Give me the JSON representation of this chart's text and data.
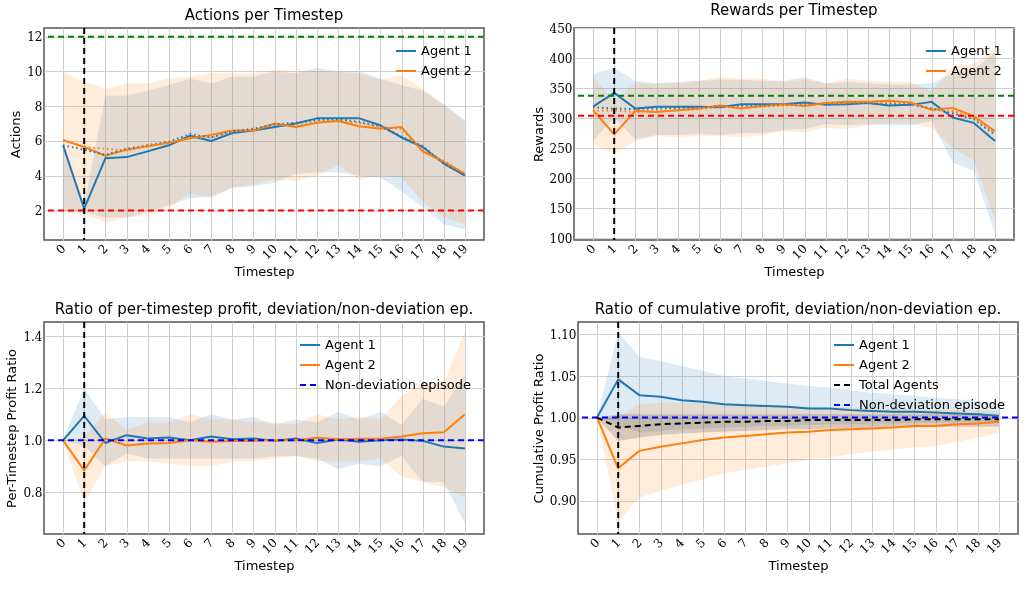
{
  "chart_data": [
    {
      "type": "line",
      "title": "Actions per Timestep",
      "xlabel": "Timestep",
      "ylabel": "Actions",
      "x": [
        0,
        1,
        2,
        3,
        4,
        5,
        6,
        7,
        8,
        9,
        10,
        11,
        12,
        13,
        14,
        15,
        16,
        17,
        18,
        19
      ],
      "xlim": [
        -0.9,
        19.9
      ],
      "xticks": [
        0,
        1,
        2,
        3,
        4,
        5,
        6,
        7,
        8,
        9,
        10,
        11,
        12,
        13,
        14,
        15,
        16,
        17,
        18,
        19
      ],
      "ylim": [
        0.3,
        12.5
      ],
      "yticks": [
        2,
        4,
        6,
        8,
        10,
        12
      ],
      "grid": true,
      "legend": "top right",
      "series": [
        {
          "name": "Agent 1",
          "color": "#1f77b4",
          "values": [
            5.75,
            2.1,
            5.0,
            5.07,
            5.4,
            5.75,
            6.3,
            6.0,
            6.45,
            6.6,
            6.8,
            7.0,
            7.3,
            7.3,
            7.3,
            6.9,
            6.2,
            5.65,
            4.7,
            4.0
          ],
          "upper": [
            5.9,
            2.3,
            8.6,
            8.6,
            8.9,
            9.2,
            9.6,
            9.3,
            9.7,
            9.7,
            10.0,
            9.9,
            10.2,
            10.0,
            10.0,
            9.6,
            9.2,
            8.9,
            8.1,
            7.2
          ],
          "lower": [
            1.9,
            1.9,
            1.6,
            1.6,
            1.9,
            2.3,
            2.7,
            2.8,
            3.3,
            3.4,
            3.6,
            4.1,
            4.2,
            4.2,
            4.0,
            3.9,
            3.1,
            2.2,
            1.2,
            0.9
          ]
        },
        {
          "name": "Agent 2",
          "color": "#ff7f0e",
          "values": [
            6.05,
            5.65,
            5.15,
            5.5,
            5.7,
            5.9,
            6.15,
            6.35,
            6.6,
            6.6,
            7.0,
            6.8,
            7.05,
            7.15,
            6.85,
            6.7,
            6.8,
            5.4,
            4.8,
            4.1
          ],
          "upper": [
            10.0,
            9.4,
            9.0,
            9.3,
            9.3,
            9.6,
            9.7,
            9.9,
            9.9,
            9.9,
            10.1,
            10.0,
            10.0,
            9.95,
            9.9,
            9.5,
            9.8,
            9.0,
            8.1,
            7.1
          ],
          "lower": [
            1.9,
            1.8,
            1.3,
            1.6,
            1.7,
            2.1,
            3.0,
            2.7,
            3.3,
            3.5,
            3.8,
            3.7,
            4.0,
            4.6,
            3.8,
            4.0,
            3.9,
            2.5,
            1.6,
            1.2
          ]
        },
        {
          "color": "#1f77b4",
          "line_style": "dotted",
          "values": [
            5.75,
            5.5,
            5.2,
            5.55,
            5.75,
            5.95,
            6.4,
            6.2,
            6.55,
            6.7,
            6.95,
            7.05,
            7.2,
            7.25,
            7.1,
            6.85,
            6.25,
            5.7,
            4.7,
            4.05
          ]
        },
        {
          "color": "#ff7f0e",
          "line_style": "dotted",
          "values": [
            6.05,
            5.65,
            5.55,
            5.45,
            5.75,
            5.9,
            6.2,
            6.2,
            6.55,
            6.65,
            6.95,
            6.85,
            7.1,
            7.15,
            7.05,
            6.8,
            6.7,
            5.5,
            4.85,
            4.1
          ]
        }
      ],
      "ref_lines": [
        {
          "axis": "y",
          "value": 12,
          "color": "#008000",
          "line_style": "dashed"
        },
        {
          "axis": "y",
          "value": 2,
          "color": "#ff0000",
          "line_style": "dashed"
        },
        {
          "axis": "x",
          "value": 1,
          "color": "#000000",
          "line_style": "dashed"
        }
      ]
    },
    {
      "type": "line",
      "title": "Rewards per Timestep",
      "xlabel": "Timestep",
      "ylabel": "Rewards",
      "x": [
        0,
        1,
        2,
        3,
        4,
        5,
        6,
        7,
        8,
        9,
        10,
        11,
        12,
        13,
        14,
        15,
        16,
        17,
        18,
        19
      ],
      "xlim": [
        -0.9,
        19.9
      ],
      "xticks": [
        0,
        1,
        2,
        3,
        4,
        5,
        6,
        7,
        8,
        9,
        10,
        11,
        12,
        13,
        14,
        15,
        16,
        17,
        18,
        19
      ],
      "ylim": [
        97,
        450
      ],
      "yticks": [
        100,
        150,
        200,
        250,
        300,
        350,
        400,
        450
      ],
      "grid": true,
      "legend": "top right",
      "series": [
        {
          "name": "Agent 1",
          "color": "#1f77b4",
          "values": [
            319,
            342,
            316,
            319,
            319,
            319,
            318,
            323,
            323,
            323,
            326,
            322,
            323,
            325,
            321,
            322,
            327,
            301,
            292,
            262
          ],
          "upper": [
            374,
            384,
            362,
            358,
            360,
            362,
            364,
            364,
            362,
            362,
            368,
            358,
            360,
            358,
            356,
            356,
            358,
            375,
            380,
            410
          ],
          "lower": [
            262,
            300,
            265,
            272,
            272,
            274,
            272,
            275,
            275,
            280,
            282,
            290,
            288,
            290,
            288,
            288,
            295,
            226,
            212,
            108
          ]
        },
        {
          "name": "Agent 2",
          "color": "#ff7f0e",
          "values": [
            313,
            273,
            312,
            310,
            313,
            316,
            321,
            316,
            320,
            323,
            320,
            325,
            327,
            327,
            329,
            326,
            314,
            317,
            303,
            278
          ],
          "upper": [
            368,
            330,
            358,
            358,
            358,
            362,
            368,
            366,
            366,
            360,
            364,
            358,
            365,
            362,
            360,
            360,
            345,
            385,
            390,
            415
          ],
          "lower": [
            256,
            240,
            262,
            270,
            268,
            270,
            270,
            268,
            272,
            278,
            276,
            284,
            282,
            288,
            292,
            290,
            284,
            250,
            230,
            130
          ]
        },
        {
          "color": "#1f77b4",
          "line_style": "dotted",
          "values": [
            318,
            316,
            315,
            316,
            317,
            318,
            319,
            320,
            321,
            322,
            323,
            324,
            325,
            325,
            324,
            323,
            316,
            308,
            298,
            272
          ]
        },
        {
          "color": "#ff7f0e",
          "line_style": "dotted",
          "values": [
            312,
            313,
            310,
            312,
            313,
            315,
            318,
            318,
            319,
            321,
            322,
            324,
            325,
            326,
            326,
            325,
            314,
            312,
            300,
            275
          ]
        }
      ],
      "ref_lines": [
        {
          "axis": "y",
          "value": 337,
          "color": "#008000",
          "line_style": "dashed"
        },
        {
          "axis": "y",
          "value": 304,
          "color": "#ff0000",
          "line_style": "dashed"
        },
        {
          "axis": "x",
          "value": 1,
          "color": "#000000",
          "line_style": "dashed"
        }
      ]
    },
    {
      "type": "line",
      "title": "Ratio of per-timestep profit, deviation/non-deviation ep.",
      "xlabel": "Timestep",
      "ylabel": "Per-Timestep Profit Ratio",
      "x": [
        0,
        1,
        2,
        3,
        4,
        5,
        6,
        7,
        8,
        9,
        10,
        11,
        12,
        13,
        14,
        15,
        16,
        17,
        18,
        19
      ],
      "xlim": [
        -0.9,
        19.9
      ],
      "xticks": [
        0,
        1,
        2,
        3,
        4,
        5,
        6,
        7,
        8,
        9,
        10,
        11,
        12,
        13,
        14,
        15,
        16,
        17,
        18,
        19
      ],
      "ylim": [
        0.64,
        1.455
      ],
      "yticks": [
        0.8,
        {
          "value": 1,
          "label": "1.0"
        },
        1.2,
        1.4
      ],
      "grid": true,
      "legend": "top right",
      "series": [
        {
          "name": "Agent 1",
          "color": "#1f77b4",
          "values": [
            1.0,
            1.094,
            0.99,
            1.02,
            1.007,
            1.011,
            1.0,
            1.015,
            1.004,
            1.007,
            0.998,
            1.007,
            0.99,
            1.003,
            0.995,
            1.0,
            1.003,
            0.998,
            0.976,
            0.969
          ],
          "upper": [
            1.0,
            1.2,
            1.08,
            1.09,
            1.09,
            1.09,
            1.07,
            1.1,
            1.08,
            1.09,
            1.06,
            1.08,
            1.07,
            1.11,
            1.08,
            1.11,
            1.06,
            1.16,
            1.13,
            1.25
          ],
          "lower": [
            1.0,
            0.98,
            0.9,
            0.95,
            0.93,
            0.93,
            0.93,
            0.93,
            0.93,
            0.93,
            0.94,
            0.94,
            0.93,
            0.89,
            0.91,
            0.9,
            0.94,
            0.84,
            0.84,
            0.68
          ]
        },
        {
          "name": "Agent 2",
          "color": "#ff7f0e",
          "values": [
            1.0,
            0.884,
            1.007,
            0.98,
            0.988,
            0.99,
            1.0,
            0.995,
            0.998,
            0.998,
            1.0,
            1.0,
            1.01,
            1.004,
            1.006,
            1.006,
            1.015,
            1.027,
            1.031,
            1.1
          ],
          "upper": [
            1.0,
            1.01,
            1.11,
            1.04,
            1.07,
            1.07,
            1.1,
            1.08,
            1.08,
            1.07,
            1.07,
            1.06,
            1.1,
            1.08,
            1.09,
            1.08,
            1.17,
            1.22,
            1.22,
            1.42
          ],
          "lower": [
            1.0,
            0.76,
            0.9,
            0.92,
            0.92,
            0.91,
            0.9,
            0.9,
            0.92,
            0.92,
            0.93,
            0.94,
            0.92,
            0.92,
            0.92,
            0.93,
            0.86,
            0.84,
            0.82,
            0.78
          ]
        }
      ],
      "ref_lines": [
        {
          "axis": "y",
          "value": 1.0,
          "color": "#0000ff",
          "line_style": "dashed",
          "label": "Non-deviation episode"
        },
        {
          "axis": "x",
          "value": 1,
          "color": "#000000",
          "line_style": "dashed"
        }
      ]
    },
    {
      "type": "line",
      "title": "Ratio of cumulative profit, deviation/non-deviation ep.",
      "xlabel": "Timestep",
      "ylabel": "Cumulative Profit Ratio",
      "x": [
        0,
        1,
        2,
        3,
        4,
        5,
        6,
        7,
        8,
        9,
        10,
        11,
        12,
        13,
        14,
        15,
        16,
        17,
        18,
        19
      ],
      "xlim": [
        -0.9,
        19.9
      ],
      "xticks": [
        0,
        1,
        2,
        3,
        4,
        5,
        6,
        7,
        8,
        9,
        10,
        11,
        12,
        13,
        14,
        15,
        16,
        17,
        18,
        19
      ],
      "ylim": [
        0.86,
        1.115
      ],
      "yticks": [
        {
          "value": 0.9,
          "label": "0.90"
        },
        {
          "value": 0.95,
          "label": "0.95"
        },
        {
          "value": 1.0,
          "label": "1.00"
        },
        {
          "value": 1.05,
          "label": "1.05"
        },
        {
          "value": 1.1,
          "label": "1.10"
        }
      ],
      "grid": true,
      "legend": "top right",
      "series": [
        {
          "name": "Agent 1",
          "color": "#1f77b4",
          "values": [
            1.0,
            1.046,
            1.027,
            1.025,
            1.021,
            1.019,
            1.016,
            1.015,
            1.014,
            1.013,
            1.011,
            1.011,
            1.009,
            1.008,
            1.007,
            1.007,
            1.006,
            1.005,
            1.004,
            1.002
          ],
          "upper": [
            1.0,
            1.103,
            1.073,
            1.068,
            1.062,
            1.056,
            1.05,
            1.047,
            1.044,
            1.041,
            1.038,
            1.036,
            1.033,
            1.03,
            1.028,
            1.026,
            1.024,
            1.022,
            1.02,
            1.017
          ],
          "lower": [
            1.0,
            0.99,
            0.982,
            0.984,
            0.986,
            0.987,
            0.988,
            0.989,
            0.99,
            0.99,
            0.991,
            0.992,
            0.992,
            0.993,
            0.993,
            0.994,
            0.994,
            0.994,
            0.995,
            0.995
          ]
        },
        {
          "name": "Agent 2",
          "color": "#ff7f0e",
          "values": [
            1.0,
            0.939,
            0.96,
            0.965,
            0.969,
            0.973,
            0.976,
            0.978,
            0.98,
            0.982,
            0.983,
            0.985,
            0.986,
            0.987,
            0.988,
            0.99,
            0.99,
            0.992,
            0.993,
            0.995
          ],
          "upper": [
            1.0,
            1.0,
            1.016,
            1.018,
            1.018,
            1.018,
            1.017,
            1.016,
            1.015,
            1.014,
            1.013,
            1.012,
            1.012,
            1.011,
            1.011,
            1.01,
            1.01,
            1.009,
            1.009,
            1.008
          ],
          "lower": [
            1.0,
            0.875,
            0.904,
            0.912,
            0.919,
            0.926,
            0.933,
            0.937,
            0.941,
            0.945,
            0.949,
            0.952,
            0.956,
            0.959,
            0.962,
            0.964,
            0.966,
            0.971,
            0.976,
            0.981
          ]
        },
        {
          "name": "Total Agents",
          "color": "#000000",
          "line_style": "dashed",
          "values": [
            1.0,
            0.988,
            0.99,
            0.992,
            0.993,
            0.994,
            0.995,
            0.995,
            0.996,
            0.996,
            0.997,
            0.997,
            0.997,
            0.997,
            0.997,
            0.998,
            0.998,
            0.998,
            0.998,
            0.998
          ],
          "upper": [
            1.0,
            1.004,
            1.004,
            1.004,
            1.004,
            1.004,
            1.004,
            1.004,
            1.004,
            1.004,
            1.004,
            1.004,
            1.004,
            1.004,
            1.004,
            1.004,
            1.004,
            1.004,
            1.004,
            1.004
          ],
          "lower": [
            1.0,
            0.972,
            0.976,
            0.979,
            0.981,
            0.982,
            0.983,
            0.984,
            0.985,
            0.986,
            0.986,
            0.987,
            0.987,
            0.988,
            0.988,
            0.988,
            0.989,
            0.989,
            0.989,
            0.989
          ]
        }
      ],
      "ref_lines": [
        {
          "axis": "y",
          "value": 1.0,
          "color": "#0000ff",
          "line_style": "dashed",
          "label": "Non-deviation episode"
        },
        {
          "axis": "x",
          "value": 1,
          "color": "#000000",
          "line_style": "dashed"
        }
      ]
    }
  ]
}
